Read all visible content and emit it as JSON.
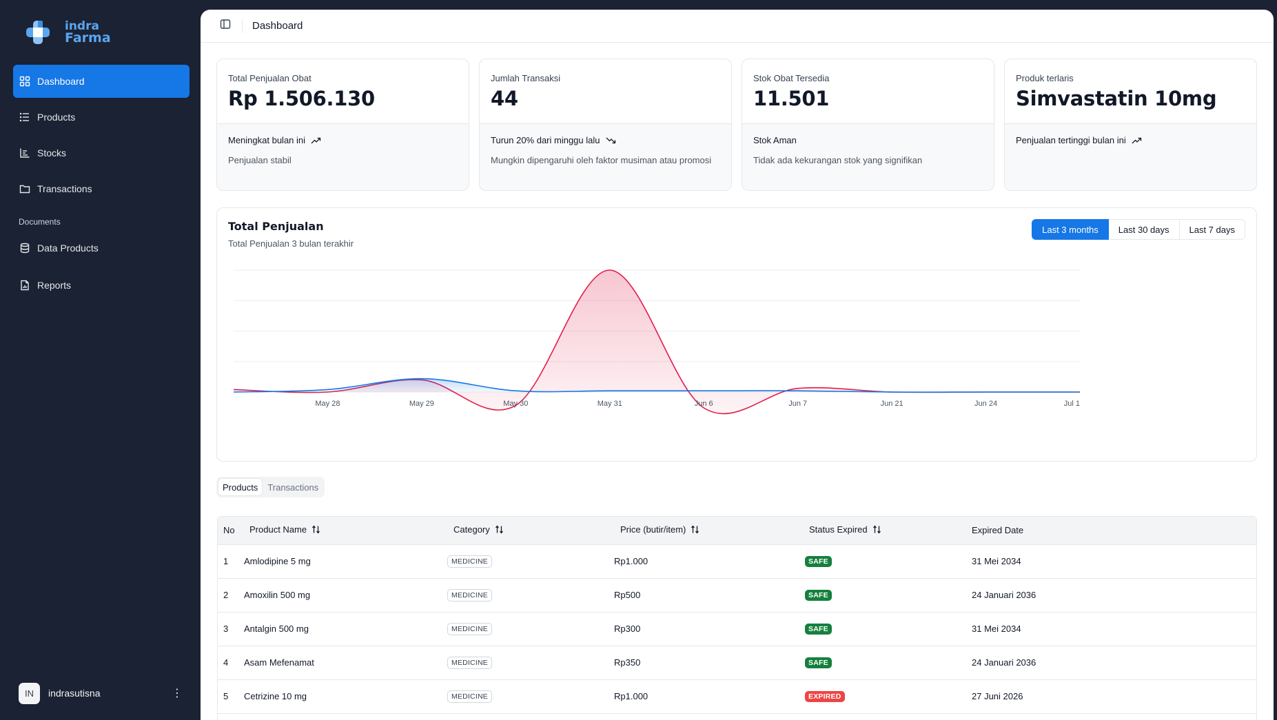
{
  "brand": {
    "line1": "indra",
    "line2": "Farma",
    "accent": "#5aa6f0"
  },
  "sidebar": {
    "items": [
      {
        "label": "Dashboard",
        "icon": "dashboard-grid-icon",
        "active": true
      },
      {
        "label": "Products",
        "icon": "list-icon"
      },
      {
        "label": "Stocks",
        "icon": "bar-chart-icon"
      },
      {
        "label": "Transactions",
        "icon": "folder-icon"
      }
    ],
    "section_label": "Documents",
    "documents": [
      {
        "label": "Data Products",
        "icon": "database-icon"
      },
      {
        "label": "Reports",
        "icon": "file-report-icon"
      }
    ],
    "user": {
      "initials": "IN",
      "name": "indrasutisna"
    }
  },
  "header": {
    "title": "Dashboard"
  },
  "cards": [
    {
      "label": "Total Penjualan Obat",
      "value": "Rp 1.506.130",
      "trend": "Meningkat bulan ini",
      "trend_icon": "trending-up-icon",
      "note": "Penjualan stabil"
    },
    {
      "label": "Jumlah Transaksi",
      "value": "44",
      "trend": "Turun 20% dari minggu lalu",
      "trend_icon": "trending-down-icon",
      "note": "Mungkin dipengaruhi oleh faktor musiman atau promosi"
    },
    {
      "label": "Stok Obat Tersedia",
      "value": "11.501",
      "trend": "Stok Aman",
      "trend_icon": "",
      "note": "Tidak ada kekurangan stok yang signifikan"
    },
    {
      "label": "Produk terlaris",
      "value": "Simvastatin 10mg",
      "trend": "Penjualan tertinggi bulan ini",
      "trend_icon": "trending-up-icon",
      "note": ""
    }
  ],
  "chart": {
    "title": "Total Penjualan",
    "subtitle": "Total Penjualan 3 bulan terakhir",
    "ranges": [
      "Last 3 months",
      "Last 30 days",
      "Last 7 days"
    ],
    "active_range": "Last 3 months"
  },
  "chart_data": {
    "type": "area",
    "categories": [
      "",
      "May 28",
      "May 29",
      "May 30",
      "May 31",
      "Jun 6",
      "Jun 7",
      "Jun 21",
      "Jun 24",
      "Jul 1"
    ],
    "series": [
      {
        "values": [
          2,
          0,
          10,
          0,
          100,
          0,
          3,
          0,
          0,
          0
        ],
        "color": "#e11d48"
      },
      {
        "values": [
          0,
          2,
          11,
          1,
          1,
          1,
          1,
          0,
          0,
          0
        ],
        "color": "#1677e6"
      }
    ],
    "ylim": [
      -14,
      100
    ],
    "grid": true
  },
  "table_tabs": [
    "Products",
    "Transactions"
  ],
  "table": {
    "columns": [
      {
        "label": "No",
        "sortable": false
      },
      {
        "label": "Product Name",
        "sortable": true
      },
      {
        "label": "Category",
        "sortable": true
      },
      {
        "label": "Price (butir/item)",
        "sortable": true
      },
      {
        "label": "Status Expired",
        "sortable": true
      },
      {
        "label": "Expired Date",
        "sortable": false
      }
    ],
    "rows": [
      {
        "no": "1",
        "name": "Amlodipine 5 mg",
        "category": "MEDICINE",
        "price": "Rp1.000",
        "status": "SAFE",
        "expired": "31 Mei 2034"
      },
      {
        "no": "2",
        "name": "Amoxilin 500 mg",
        "category": "MEDICINE",
        "price": "Rp500",
        "status": "SAFE",
        "expired": "24 Januari 2036"
      },
      {
        "no": "3",
        "name": "Antalgin 500 mg",
        "category": "MEDICINE",
        "price": "Rp300",
        "status": "SAFE",
        "expired": "31 Mei 2034"
      },
      {
        "no": "4",
        "name": "Asam Mefenamat",
        "category": "MEDICINE",
        "price": "Rp350",
        "status": "SAFE",
        "expired": "24 Januari 2036"
      },
      {
        "no": "5",
        "name": "Cetrizine 10 mg",
        "category": "MEDICINE",
        "price": "Rp1.000",
        "status": "EXPIRED",
        "expired": "27 Juni 2026"
      }
    ],
    "status_colors": {
      "SAFE": "#15803d",
      "EXPIRED": "#ef4444"
    }
  }
}
